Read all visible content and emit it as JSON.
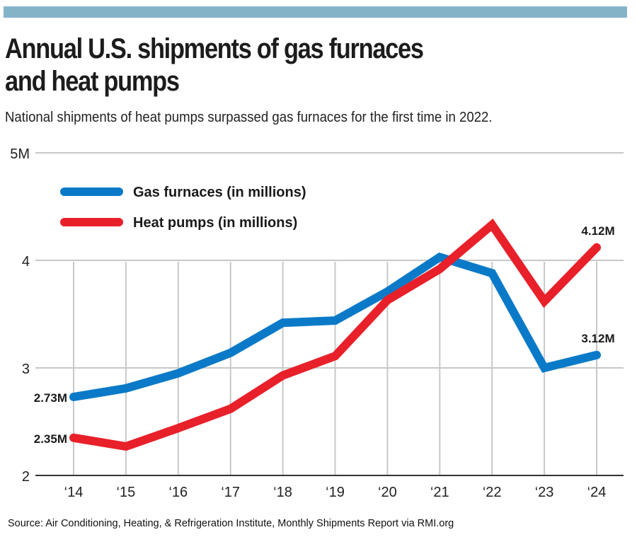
{
  "header": {
    "title_line1": "Annual U.S. shipments of gas furnaces",
    "title_line2": "and heat pumps",
    "subtitle": "National shipments of heat pumps surpassed gas furnaces for the first time in 2022."
  },
  "footer": {
    "source": "Source: Air Conditioning, Heating, & Refrigeration Institute, Monthly Shipments Report via RMI.org"
  },
  "colors": {
    "banner": "#84b3c8",
    "gas": "#0a7ac8",
    "heat": "#e8202a",
    "grid": "#c8c8c8",
    "axis": "#333333"
  },
  "chart_data": {
    "type": "line",
    "title": "Annual U.S. shipments of gas furnaces and heat pumps",
    "subtitle": "National shipments of heat pumps surpassed gas furnaces for the first time in 2022.",
    "xlabel": "",
    "ylabel": "",
    "categories": [
      "‘14",
      "‘15",
      "‘16",
      "‘17",
      "‘18",
      "‘19",
      "‘20",
      "‘21",
      "‘22",
      "‘23",
      "‘24"
    ],
    "ylim": [
      2,
      5
    ],
    "yticks": [
      {
        "value": 2,
        "label": "2"
      },
      {
        "value": 3,
        "label": "3"
      },
      {
        "value": 4,
        "label": "4"
      },
      {
        "value": 5,
        "label": "5M"
      }
    ],
    "grid": true,
    "legend_position": "top-left",
    "series": [
      {
        "name": "Gas furnaces (in millions)",
        "key": "gas",
        "values": [
          2.73,
          2.81,
          2.95,
          3.14,
          3.42,
          3.44,
          3.71,
          4.03,
          3.88,
          3.0,
          3.12
        ]
      },
      {
        "name": "Heat pumps (in millions)",
        "key": "heat",
        "values": [
          2.35,
          2.27,
          2.44,
          2.62,
          2.93,
          3.11,
          3.63,
          3.92,
          4.33,
          3.62,
          4.12
        ]
      }
    ],
    "annotations": [
      {
        "series": "gas",
        "index": 0,
        "text": "2.73M"
      },
      {
        "series": "heat",
        "index": 0,
        "text": "2.35M"
      },
      {
        "series": "gas",
        "index": 10,
        "text": "3.12M"
      },
      {
        "series": "heat",
        "index": 10,
        "text": "4.12M"
      }
    ]
  }
}
